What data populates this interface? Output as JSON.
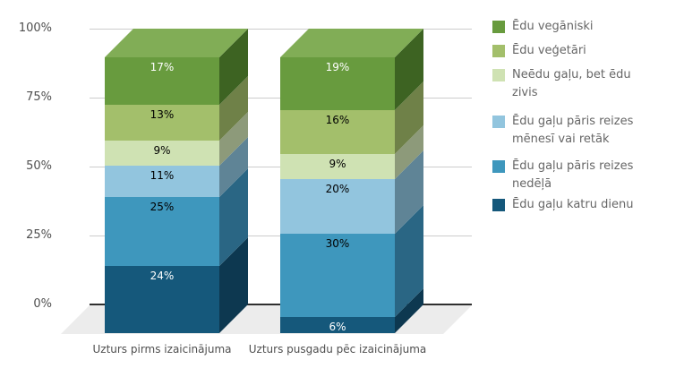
{
  "chart_data": {
    "type": "bar",
    "subtype": "stacked-percent-column-3d",
    "categories": [
      "Uzturs pirms izaicinājuma",
      "Uzturs pusgadu pēc izaicinājuma"
    ],
    "series": [
      {
        "name": "Ēdu vegāniski",
        "values": [
          17,
          19
        ],
        "labels": [
          "17%",
          "19%"
        ],
        "color": "#689b3e",
        "side_color": "#3d6322",
        "top_color": "#81ad56",
        "label_color": "#ffffff"
      },
      {
        "name": "Ēdu veģetāri",
        "values": [
          13,
          16
        ],
        "labels": [
          "13%",
          "16%"
        ],
        "color": "#a3bf6b",
        "side_color": "#6f8148",
        "label_color": "#000000"
      },
      {
        "name": "Neēdu gaļu, bet ēdu zivis",
        "values": [
          9,
          9
        ],
        "labels": [
          "9%",
          "9%"
        ],
        "color": "#cfe2b3",
        "side_color": "#8d9a7a",
        "label_color": "#000000"
      },
      {
        "name": "Ēdu gaļu pāris reizes mēnesī vai retāk",
        "values": [
          11,
          20
        ],
        "labels": [
          "11%",
          "20%"
        ],
        "color": "#92c5de",
        "side_color": "#5f8496",
        "label_color": "#000000"
      },
      {
        "name": "Ēdu gaļu pāris reizes nedēļā",
        "values": [
          25,
          30
        ],
        "labels": [
          "25%",
          "30%"
        ],
        "color": "#3e97bd",
        "side_color": "#2a6684",
        "label_color": "#000000"
      },
      {
        "name": "Ēdu gaļu katru dienu",
        "values": [
          24,
          6
        ],
        "labels": [
          "24%",
          "6%"
        ],
        "color": "#15587b",
        "side_color": "#0d3850",
        "label_color": "#ffffff"
      }
    ],
    "y_ticks": [
      "100%",
      "75%",
      "50%",
      "25%",
      "0%"
    ],
    "ylim": [
      0,
      100
    ],
    "grid": true,
    "legend_position": "right"
  },
  "colors": {
    "background": "#ffffff",
    "gridline": "#cccccc",
    "axis_line": "#2f2f2f",
    "floor": "#ececec",
    "axis_text": "#4f4f4f",
    "legend_text": "#666666"
  }
}
